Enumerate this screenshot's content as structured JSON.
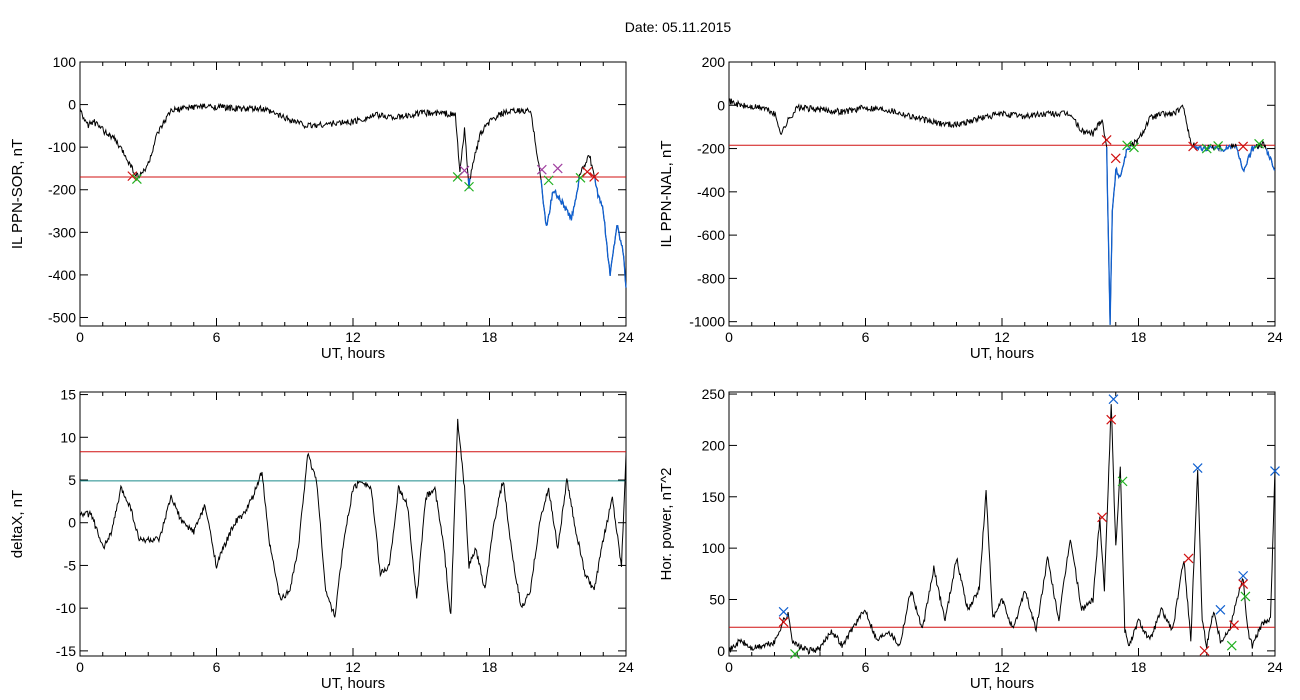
{
  "figure_title": "Date:  05.11.2015",
  "colors": {
    "trace": "#000000",
    "threshold_red": "#d01010",
    "threshold_teal": "#1a8a8a",
    "highlight_blue": "#1060d0",
    "marker_red": "#d01010",
    "marker_green": "#20b020",
    "marker_blue": "#1060d0",
    "marker_purple": "#a040a0"
  },
  "chart_data": [
    {
      "id": "ppn-sor",
      "type": "line",
      "xlabel": "UT, hours",
      "ylabel": "IL PPN-SOR, nT",
      "xlim": [
        0,
        24
      ],
      "ylim": [
        -520,
        100
      ],
      "xticks": [
        0,
        6,
        12,
        18,
        24
      ],
      "yticks": [
        100,
        0,
        -100,
        -200,
        -300,
        -400,
        -500
      ],
      "threshold": {
        "y": -170,
        "color": "red"
      },
      "series": [
        {
          "x": [
            0,
            0.3,
            0.6,
            1.0,
            1.5,
            2.0,
            2.4,
            2.6,
            3.0,
            3.4,
            4.0,
            5.0,
            6.0,
            7.0,
            8.0,
            9.0,
            10.0,
            11.0,
            12.0,
            13.0,
            14.0,
            15.0,
            16.0,
            16.5,
            16.7,
            16.9,
            17.1,
            17.3,
            17.6,
            18.0,
            18.6,
            19.2,
            19.8,
            20.2,
            20.5,
            20.8,
            21.2,
            21.6,
            22.0,
            22.4,
            22.8,
            23.0,
            23.3,
            23.6,
            23.9,
            24.0
          ],
          "y": [
            -10,
            -50,
            -40,
            -60,
            -80,
            -120,
            -160,
            -170,
            -140,
            -70,
            -15,
            -5,
            -5,
            -10,
            -10,
            -30,
            -50,
            -45,
            -40,
            -25,
            -30,
            -20,
            -20,
            -25,
            -160,
            -60,
            -190,
            -130,
            -70,
            -40,
            -20,
            -15,
            -15,
            -150,
            -290,
            -200,
            -230,
            -270,
            -160,
            -120,
            -220,
            -250,
            -400,
            -280,
            -350,
            -430
          ]
        }
      ],
      "markers": [
        {
          "x": 2.3,
          "y": -168,
          "symbol": "x",
          "color": "red"
        },
        {
          "x": 2.5,
          "y": -175,
          "symbol": "x",
          "color": "green"
        },
        {
          "x": 16.6,
          "y": -170,
          "symbol": "x",
          "color": "green"
        },
        {
          "x": 16.9,
          "y": -155,
          "symbol": "x",
          "color": "purple"
        },
        {
          "x": 17.1,
          "y": -193,
          "symbol": "x",
          "color": "green"
        },
        {
          "x": 20.3,
          "y": -153,
          "symbol": "x",
          "color": "purple"
        },
        {
          "x": 20.6,
          "y": -178,
          "symbol": "x",
          "color": "green"
        },
        {
          "x": 21.0,
          "y": -150,
          "symbol": "x",
          "color": "purple"
        },
        {
          "x": 22.0,
          "y": -172,
          "symbol": "x",
          "color": "green"
        },
        {
          "x": 22.3,
          "y": -158,
          "symbol": "x",
          "color": "red"
        },
        {
          "x": 22.6,
          "y": -170,
          "symbol": "x",
          "color": "red"
        }
      ]
    },
    {
      "id": "ppn-nal",
      "type": "line",
      "xlabel": "UT, hours",
      "ylabel": "IL PPN-NAL, nT",
      "xlim": [
        0,
        24
      ],
      "ylim": [
        -1020,
        200
      ],
      "xticks": [
        0,
        6,
        12,
        18,
        24
      ],
      "yticks": [
        200,
        0,
        -200,
        -400,
        -600,
        -800,
        -1000
      ],
      "threshold": {
        "y": -185,
        "color": "red"
      },
      "series": [
        {
          "x": [
            0,
            0.5,
            1.0,
            1.5,
            2.0,
            2.3,
            2.6,
            3.0,
            4.0,
            5.0,
            6.0,
            7.0,
            8.0,
            9.0,
            10.0,
            11.0,
            12.0,
            13.0,
            14.0,
            15.0,
            15.5,
            16.0,
            16.4,
            16.6,
            16.75,
            16.85,
            17.0,
            17.2,
            17.5,
            18.0,
            18.5,
            19.0,
            19.5,
            20.0,
            20.3,
            20.8,
            21.3,
            21.8,
            22.3,
            22.6,
            23.0,
            23.5,
            24.0
          ],
          "y": [
            20,
            0,
            -10,
            -10,
            -40,
            -130,
            -70,
            -10,
            -20,
            -30,
            -10,
            -20,
            -50,
            -80,
            -90,
            -60,
            -40,
            -50,
            -40,
            -40,
            -120,
            -130,
            -60,
            -200,
            -1000,
            -500,
            -300,
            -330,
            -200,
            -160,
            -60,
            -40,
            -40,
            -10,
            -180,
            -200,
            -190,
            -200,
            -180,
            -310,
            -200,
            -180,
            -300
          ]
        }
      ],
      "markers": [
        {
          "x": 16.6,
          "y": -160,
          "symbol": "x",
          "color": "red"
        },
        {
          "x": 17.0,
          "y": -245,
          "symbol": "x",
          "color": "red"
        },
        {
          "x": 17.5,
          "y": -185,
          "symbol": "x",
          "color": "green"
        },
        {
          "x": 17.8,
          "y": -195,
          "symbol": "x",
          "color": "green"
        },
        {
          "x": 20.4,
          "y": -190,
          "symbol": "x",
          "color": "red"
        },
        {
          "x": 21.0,
          "y": -200,
          "symbol": "x",
          "color": "green"
        },
        {
          "x": 21.5,
          "y": -188,
          "symbol": "x",
          "color": "green"
        },
        {
          "x": 22.6,
          "y": -190,
          "symbol": "x",
          "color": "red"
        },
        {
          "x": 23.3,
          "y": -178,
          "symbol": "x",
          "color": "green"
        }
      ]
    },
    {
      "id": "deltax",
      "type": "line",
      "xlabel": "UT, hours",
      "ylabel": "deltaX, nT",
      "xlim": [
        0,
        24
      ],
      "ylim": [
        -15.6,
        15.3
      ],
      "xticks": [
        0,
        6,
        12,
        18,
        24
      ],
      "yticks": [
        15,
        10,
        5,
        0,
        -5,
        -10,
        -15
      ],
      "thresholds": [
        {
          "y": 8.3,
          "color": "red"
        },
        {
          "y": 4.9,
          "color": "teal"
        }
      ],
      "series": [
        {
          "x": [
            0,
            0.5,
            1.0,
            1.4,
            1.8,
            2.2,
            2.6,
            3.0,
            3.5,
            4.0,
            4.5,
            5.0,
            5.5,
            6.0,
            6.3,
            6.8,
            7.2,
            7.6,
            8.0,
            8.3,
            8.8,
            9.2,
            9.6,
            10.0,
            10.4,
            10.8,
            11.2,
            11.6,
            12.0,
            12.4,
            12.8,
            13.2,
            13.6,
            14.0,
            14.4,
            14.8,
            15.2,
            15.6,
            16.0,
            16.3,
            16.6,
            16.9,
            17.1,
            17.4,
            17.8,
            18.2,
            18.6,
            19.0,
            19.4,
            19.8,
            20.2,
            20.6,
            21.0,
            21.4,
            21.8,
            22.2,
            22.6,
            23.0,
            23.4,
            23.8,
            24.0
          ],
          "y": [
            1,
            1,
            -3,
            -1,
            4,
            2,
            -2,
            -2,
            -2,
            3,
            0,
            -1,
            2,
            -5,
            -3,
            0,
            1,
            3,
            6,
            -2,
            -9,
            -8,
            -3,
            8,
            5,
            -8,
            -11,
            -2,
            4,
            5,
            4,
            -6,
            -5,
            4,
            2,
            -9,
            3,
            4,
            -3,
            -11,
            12,
            4,
            -5,
            -3,
            -8,
            0,
            5,
            -4,
            -10,
            -8,
            0,
            4,
            -3,
            5,
            -1,
            -6,
            -8,
            -2,
            3,
            -5,
            8
          ]
        }
      ],
      "markers": []
    },
    {
      "id": "hor-power",
      "type": "line",
      "xlabel": "UT, hours",
      "ylabel": "Hor. power, nT^2",
      "xlim": [
        0,
        24
      ],
      "ylim": [
        -5,
        252
      ],
      "xticks": [
        0,
        6,
        12,
        18,
        24
      ],
      "yticks": [
        250,
        200,
        150,
        100,
        50,
        0
      ],
      "threshold": {
        "y": 23,
        "color": "red"
      },
      "series": [
        {
          "x": [
            0,
            0.5,
            1.0,
            1.5,
            2.0,
            2.4,
            2.6,
            2.8,
            3.0,
            3.5,
            4.0,
            4.5,
            5.0,
            5.5,
            6.0,
            6.5,
            7.0,
            7.5,
            8.0,
            8.5,
            9.0,
            9.5,
            10.0,
            10.5,
            11.0,
            11.3,
            11.6,
            12.0,
            12.5,
            13.0,
            13.5,
            14.0,
            14.5,
            15.0,
            15.5,
            16.0,
            16.3,
            16.5,
            16.8,
            17.0,
            17.2,
            17.4,
            17.6,
            18.0,
            18.5,
            19.0,
            19.5,
            20.0,
            20.3,
            20.6,
            20.8,
            21.0,
            21.3,
            21.6,
            22.0,
            22.3,
            22.6,
            22.8,
            23.0,
            23.4,
            23.8,
            24.0
          ],
          "y": [
            0,
            10,
            2,
            5,
            8,
            30,
            35,
            10,
            5,
            0,
            2,
            20,
            5,
            25,
            40,
            10,
            20,
            5,
            60,
            20,
            80,
            30,
            90,
            40,
            60,
            155,
            30,
            50,
            20,
            60,
            20,
            90,
            30,
            110,
            40,
            50,
            130,
            60,
            240,
            100,
            180,
            20,
            5,
            30,
            10,
            40,
            20,
            90,
            10,
            178,
            30,
            5,
            40,
            10,
            20,
            50,
            70,
            20,
            5,
            25,
            30,
            178
          ]
        }
      ],
      "markers": [
        {
          "x": 2.4,
          "y": 38,
          "symbol": "x",
          "color": "blue"
        },
        {
          "x": 2.4,
          "y": 28,
          "symbol": "x",
          "color": "red"
        },
        {
          "x": 2.9,
          "y": -3,
          "symbol": "x",
          "color": "green"
        },
        {
          "x": 16.4,
          "y": 130,
          "symbol": "x",
          "color": "red"
        },
        {
          "x": 16.8,
          "y": 225,
          "symbol": "x",
          "color": "red"
        },
        {
          "x": 16.9,
          "y": 245,
          "symbol": "x",
          "color": "blue"
        },
        {
          "x": 17.3,
          "y": 165,
          "symbol": "x",
          "color": "green"
        },
        {
          "x": 20.2,
          "y": 90,
          "symbol": "x",
          "color": "red"
        },
        {
          "x": 20.6,
          "y": 178,
          "symbol": "x",
          "color": "blue"
        },
        {
          "x": 20.9,
          "y": 0,
          "symbol": "x",
          "color": "red"
        },
        {
          "x": 21.6,
          "y": 40,
          "symbol": "x",
          "color": "blue"
        },
        {
          "x": 22.2,
          "y": 25,
          "symbol": "x",
          "color": "red"
        },
        {
          "x": 22.1,
          "y": 5,
          "symbol": "x",
          "color": "green"
        },
        {
          "x": 22.6,
          "y": 73,
          "symbol": "x",
          "color": "blue"
        },
        {
          "x": 22.6,
          "y": 65,
          "symbol": "x",
          "color": "red"
        },
        {
          "x": 22.7,
          "y": 53,
          "symbol": "x",
          "color": "green"
        },
        {
          "x": 24.0,
          "y": 175,
          "symbol": "x",
          "color": "blue"
        }
      ]
    }
  ]
}
